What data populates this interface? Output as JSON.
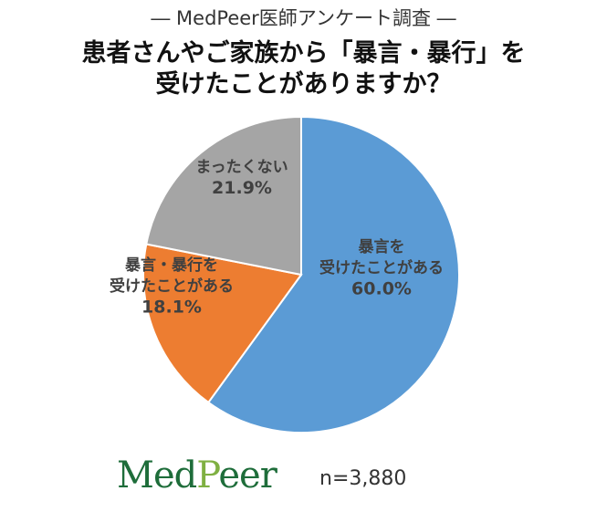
{
  "header": {
    "survey_label": "― MedPeer医師アンケート調査 ―",
    "title_line_1": "患者さんやご家族から「暴言・暴行」を",
    "title_line_2": "受けたことがありますか？"
  },
  "chart_data": {
    "type": "pie",
    "slices": [
      {
        "label_lines": [
          "暴言を",
          "受けたことがある"
        ],
        "value": 60.0,
        "value_text": "60.0%",
        "color": "#5b9bd5"
      },
      {
        "label_lines": [
          "暴言・暴行を",
          "受けたことがある"
        ],
        "value": 18.1,
        "value_text": "18.1%",
        "color": "#ed7d31"
      },
      {
        "label_lines": [
          "まったくない"
        ],
        "value": 21.9,
        "value_text": "21.9%",
        "color": "#a5a5a5"
      }
    ],
    "start": "12 o'clock",
    "direction": "clockwise",
    "data_labels": "inside"
  },
  "footer": {
    "logo_part_1": "Med",
    "logo_part_2": "P",
    "logo_part_3": "eer",
    "sample_size": "n=3,880"
  },
  "colors": {
    "logo_primary": "#1e6d3a",
    "logo_accent": "#7fb042"
  }
}
